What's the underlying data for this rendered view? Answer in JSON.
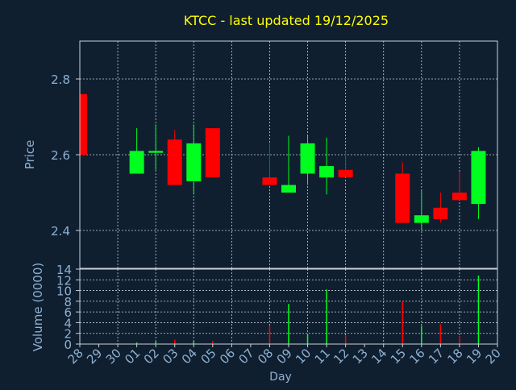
{
  "colors": {
    "background": "#0f1f30",
    "title": "#ffff00",
    "axis_text": "#8fb0d0",
    "grid": "#c8d0d8",
    "up": "#00ff1e",
    "down": "#ff0000"
  },
  "chart_data": [
    {
      "type": "candlestick",
      "title": "KTCC - last updated 19/12/2025",
      "ylabel": "Price",
      "ylim": [
        2.3,
        2.9
      ],
      "yticks": [
        2.4,
        2.6,
        2.8
      ],
      "grid": true,
      "categories": [
        "28",
        "29",
        "30",
        "01",
        "02",
        "03",
        "04",
        "05",
        "06",
        "07",
        "08",
        "09",
        "10",
        "11",
        "12",
        "13",
        "14",
        "15",
        "16",
        "17",
        "18",
        "19",
        "20"
      ],
      "series": [
        {
          "values": [
            {
              "day": "28",
              "open": 2.76,
              "high": 2.76,
              "low": 2.6,
              "close": 2.6
            },
            {
              "day": "01",
              "open": 2.55,
              "high": 2.67,
              "low": 2.55,
              "close": 2.61
            },
            {
              "day": "02",
              "open": 2.605,
              "high": 2.68,
              "low": 2.56,
              "close": 2.61
            },
            {
              "day": "03",
              "open": 2.64,
              "high": 2.665,
              "low": 2.52,
              "close": 2.52
            },
            {
              "day": "04",
              "open": 2.53,
              "high": 2.68,
              "low": 2.495,
              "close": 2.63
            },
            {
              "day": "05",
              "open": 2.67,
              "high": 2.67,
              "low": 2.54,
              "close": 2.54
            },
            {
              "day": "08",
              "open": 2.54,
              "high": 2.63,
              "low": 2.52,
              "close": 2.52
            },
            {
              "day": "09",
              "open": 2.5,
              "high": 2.65,
              "low": 2.5,
              "close": 2.52
            },
            {
              "day": "10",
              "open": 2.55,
              "high": 2.65,
              "low": 2.52,
              "close": 2.63
            },
            {
              "day": "11",
              "open": 2.54,
              "high": 2.645,
              "low": 2.495,
              "close": 2.57
            },
            {
              "day": "12",
              "open": 2.56,
              "high": 2.61,
              "low": 2.54,
              "close": 2.54
            },
            {
              "day": "15",
              "open": 2.55,
              "high": 2.58,
              "low": 2.42,
              "close": 2.42
            },
            {
              "day": "16",
              "open": 2.42,
              "high": 2.505,
              "low": 2.4,
              "close": 2.44
            },
            {
              "day": "17",
              "open": 2.46,
              "high": 2.5,
              "low": 2.42,
              "close": 2.43
            },
            {
              "day": "18",
              "open": 2.5,
              "high": 2.555,
              "low": 2.48,
              "close": 2.48
            },
            {
              "day": "19",
              "open": 2.47,
              "high": 2.62,
              "low": 2.43,
              "close": 2.61
            }
          ]
        }
      ]
    },
    {
      "type": "bar",
      "xlabel": "Day",
      "ylabel": "Volume (0000)",
      "ylim": [
        0,
        14
      ],
      "yticks": [
        0,
        2,
        4,
        6,
        8,
        10,
        12,
        14
      ],
      "grid": true,
      "categories": [
        "28",
        "29",
        "30",
        "01",
        "02",
        "03",
        "04",
        "05",
        "06",
        "07",
        "08",
        "09",
        "10",
        "11",
        "12",
        "13",
        "14",
        "15",
        "16",
        "17",
        "18",
        "19",
        "20"
      ],
      "series": [
        {
          "values": [
            {
              "day": "28",
              "volume": 0.2,
              "direction": "down"
            },
            {
              "day": "01",
              "volume": 0.3,
              "direction": "up"
            },
            {
              "day": "02",
              "volume": 0.5,
              "direction": "up"
            },
            {
              "day": "03",
              "volume": 0.8,
              "direction": "down"
            },
            {
              "day": "04",
              "volume": 0.6,
              "direction": "up"
            },
            {
              "day": "05",
              "volume": 0.6,
              "direction": "down"
            },
            {
              "day": "08",
              "volume": 3.4,
              "direction": "down"
            },
            {
              "day": "09",
              "volume": 7.5,
              "direction": "up"
            },
            {
              "day": "10",
              "volume": 1.8,
              "direction": "up"
            },
            {
              "day": "11",
              "volume": 10.2,
              "direction": "up"
            },
            {
              "day": "12",
              "volume": 1.6,
              "direction": "down"
            },
            {
              "day": "15",
              "volume": 8.0,
              "direction": "down"
            },
            {
              "day": "16",
              "volume": 3.4,
              "direction": "up"
            },
            {
              "day": "17",
              "volume": 3.7,
              "direction": "down"
            },
            {
              "day": "18",
              "volume": 1.5,
              "direction": "down"
            },
            {
              "day": "19",
              "volume": 12.8,
              "direction": "up"
            }
          ]
        }
      ]
    }
  ]
}
